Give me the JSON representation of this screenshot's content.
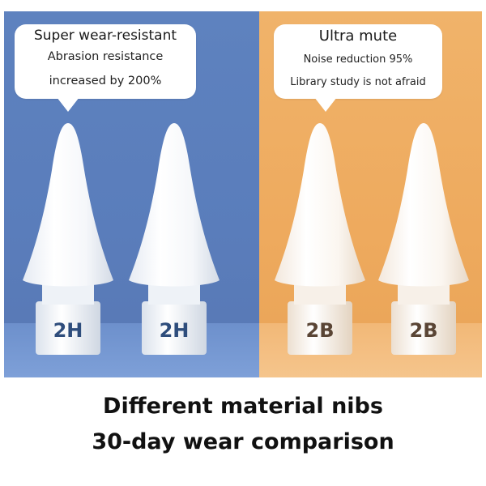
{
  "left_panel": {
    "background_color": "#5a7dbb",
    "bubble": {
      "title": "Super wear-resistant",
      "line1": "Abrasion resistance",
      "line2": "increased by 200%"
    },
    "nibs": [
      {
        "label": "2H"
      },
      {
        "label": "2H"
      }
    ]
  },
  "right_panel": {
    "background_color": "#eeaa5e",
    "bubble": {
      "title": "Ultra mute",
      "line1": "Noise reduction 95%",
      "line2": "Library study is not afraid"
    },
    "nibs": [
      {
        "label": "2B"
      },
      {
        "label": "2B"
      }
    ]
  },
  "caption": {
    "line1": "Different material nibs",
    "line2": "30-day wear comparison"
  }
}
